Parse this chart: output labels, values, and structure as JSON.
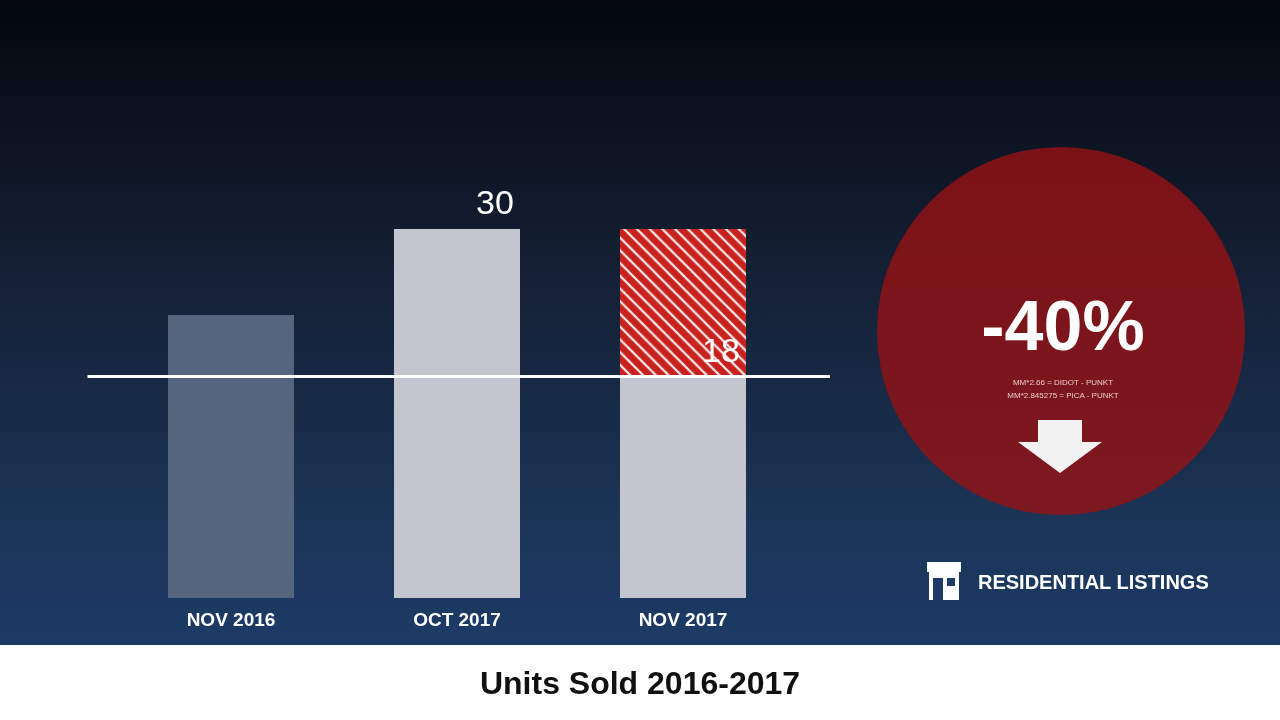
{
  "chart_data": {
    "type": "bar",
    "title": "Units Sold 2016-2017",
    "categories": [
      "NOV 2016",
      "OCT 2017",
      "NOV 2017"
    ],
    "stacked": true,
    "series": [
      {
        "colors": [
          "#56657e",
          "#c3c6ce",
          "#c3c6ce"
        ],
        "values": [
          23,
          30,
          18
        ],
        "value_labels": [
          null,
          "30",
          "18"
        ]
      },
      {
        "color": "#c8221e",
        "values": [
          null,
          null,
          12
        ]
      }
    ],
    "ref_lines": [
      {
        "axis": "y",
        "value": 18,
        "color": "#ffffff"
      }
    ],
    "annotations": [
      "-40%",
      "MM*2.66 = DIDOT - PUNKT",
      "MM*2.845275 = PICA - PUNKT",
      "RESIDENTIAL LISTINGS"
    ]
  }
}
